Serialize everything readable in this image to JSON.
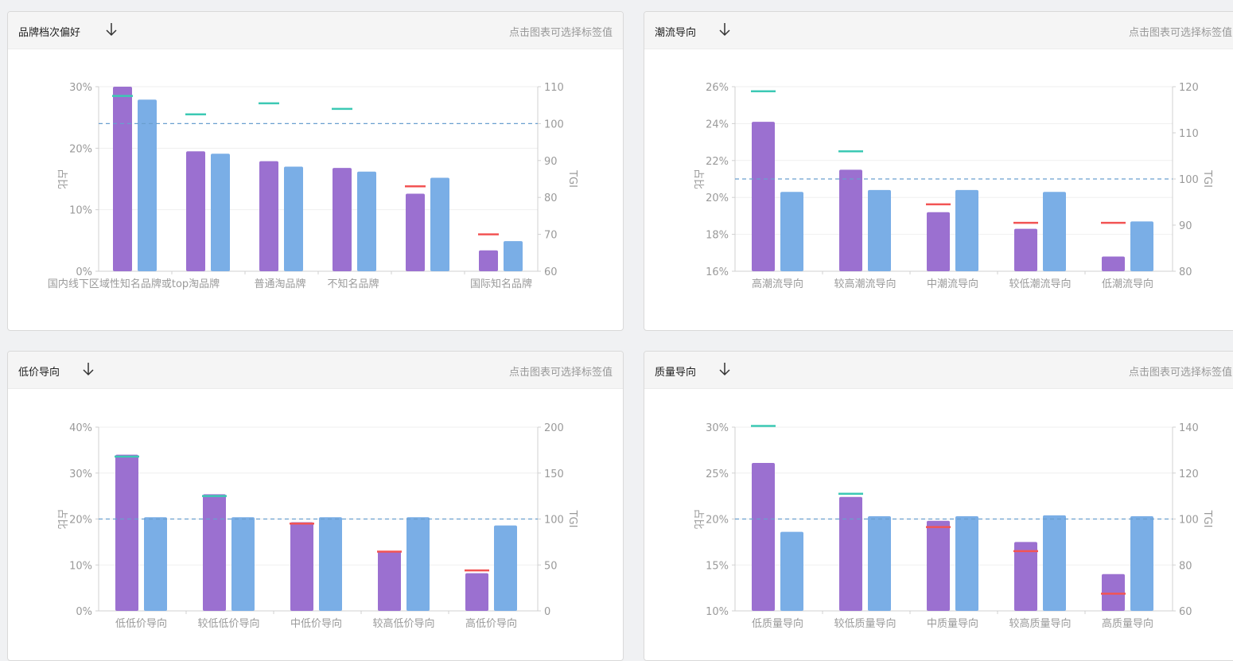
{
  "colors": {
    "bar_primary": "#9b70d0",
    "bar_secondary": "#7aaee6",
    "tgi_high": "#3cc9b4",
    "tgi_low": "#f25454",
    "baseline": "#6a9fcf",
    "axis": "#d0d0d0",
    "grid": "#efefef",
    "label": "#9a9a9a"
  },
  "panels": [
    {
      "title": "品牌档次偏好",
      "hint": "点击图表可选择标签值",
      "chart_data": {
        "type": "bar",
        "categories": [
          "国内线下区域性知名品牌或top淘品牌",
          "普通淘品牌",
          "不知名品牌",
          "",
          "",
          "国际知名品牌"
        ],
        "category_tick_labels": [
          "国内线下区域性知名品牌或top淘品牌",
          "普通淘品牌",
          "不知名品牌",
          "国际知名品牌"
        ],
        "series": [
          {
            "role": "primary",
            "values": [
              30,
              19.5,
              17.9,
              16.8,
              12.6,
              3.4
            ]
          },
          {
            "role": "secondary",
            "values": [
              27.9,
              19.1,
              17,
              16.2,
              15.2,
              4.9
            ]
          }
        ],
        "tgi": [
          107.5,
          102.5,
          105.5,
          104,
          83,
          70
        ],
        "left_axis": {
          "label": "占比",
          "min": 0,
          "max": 30,
          "ticks": [
            0,
            10,
            20,
            30
          ],
          "tick_labels": [
            "0%",
            "10%",
            "20%",
            "30%"
          ]
        },
        "right_axis": {
          "label": "TGI",
          "min": 60,
          "max": 110,
          "ticks": [
            60,
            70,
            80,
            90,
            100,
            110
          ],
          "tick_labels": [
            "60",
            "70",
            "80",
            "90",
            "100",
            "110"
          ]
        },
        "baseline_tgi": 100
      }
    },
    {
      "title": "潮流导向",
      "hint": "点击图表可选择标签值",
      "chart_data": {
        "type": "bar",
        "categories": [
          "高潮流导向",
          "较高潮流导向",
          "中潮流导向",
          "较低潮流导向",
          "低潮流导向"
        ],
        "category_tick_labels": [
          "高潮流导向",
          "较高潮流导向",
          "中潮流导向",
          "较低潮流导向",
          "低潮流导向"
        ],
        "series": [
          {
            "role": "primary",
            "values": [
              24.1,
              21.5,
              19.2,
              18.3,
              16.8
            ]
          },
          {
            "role": "secondary",
            "values": [
              20.3,
              20.4,
              20.4,
              20.3,
              18.7
            ]
          }
        ],
        "tgi": [
          119,
          106,
          94.5,
          90.5,
          90.5
        ],
        "left_axis": {
          "label": "占比",
          "min": 16,
          "max": 26,
          "ticks": [
            16,
            18,
            20,
            22,
            24,
            26
          ],
          "tick_labels": [
            "16%",
            "18%",
            "20%",
            "22%",
            "24%",
            "26%"
          ]
        },
        "right_axis": {
          "label": "TGI",
          "min": 80,
          "max": 120,
          "ticks": [
            80,
            90,
            100,
            110,
            120
          ],
          "tick_labels": [
            "80",
            "90",
            "100",
            "110",
            "120"
          ]
        },
        "baseline_tgi": 100
      }
    },
    {
      "title": "低价导向",
      "hint": "点击图表可选择标签值",
      "chart_data": {
        "type": "bar",
        "categories": [
          "低低价导向",
          "较低低价导向",
          "中低价导向",
          "较高低价导向",
          "高低价导向"
        ],
        "category_tick_labels": [
          "低低价导向",
          "较低低价导向",
          "中低价导向",
          "较高低价导向",
          "高低价导向"
        ],
        "series": [
          {
            "role": "primary",
            "values": [
              34,
              25.4,
              19.3,
              13,
              8.2
            ]
          },
          {
            "role": "secondary",
            "values": [
              20.4,
              20.4,
              20.4,
              20.4,
              18.6
            ]
          }
        ],
        "tgi": [
          168,
          125,
          95,
          64.5,
          44
        ],
        "left_axis": {
          "label": "占比",
          "min": 0,
          "max": 40,
          "ticks": [
            0,
            10,
            20,
            30,
            40
          ],
          "tick_labels": [
            "0%",
            "10%",
            "20%",
            "30%",
            "40%"
          ]
        },
        "right_axis": {
          "label": "TGI",
          "min": 0,
          "max": 200,
          "ticks": [
            0,
            50,
            100,
            150,
            200
          ],
          "tick_labels": [
            "0",
            "50",
            "100",
            "150",
            "200"
          ]
        },
        "baseline_tgi": 100
      }
    },
    {
      "title": "质量导向",
      "hint": "点击图表可选择标签值",
      "chart_data": {
        "type": "bar",
        "categories": [
          "低质量导向",
          "较低质量导向",
          "中质量导向",
          "较高质量导向",
          "高质量导向"
        ],
        "category_tick_labels": [
          "低质量导向",
          "较低质量导向",
          "中质量导向",
          "较高质量导向",
          "高质量导向"
        ],
        "series": [
          {
            "role": "primary",
            "values": [
              26.1,
              22.4,
              19.8,
              17.5,
              14
            ]
          },
          {
            "role": "secondary",
            "values": [
              18.6,
              20.3,
              20.3,
              20.4,
              20.3
            ]
          }
        ],
        "tgi": [
          140.5,
          111,
          96.5,
          86,
          67.5
        ],
        "left_axis": {
          "label": "占比",
          "min": 10,
          "max": 30,
          "ticks": [
            10,
            15,
            20,
            25,
            30
          ],
          "tick_labels": [
            "10%",
            "15%",
            "20%",
            "25%",
            "30%"
          ]
        },
        "right_axis": {
          "label": "TGI",
          "min": 60,
          "max": 140,
          "ticks": [
            60,
            80,
            100,
            120,
            140
          ],
          "tick_labels": [
            "60",
            "80",
            "100",
            "120",
            "140"
          ]
        },
        "baseline_tgi": 100
      }
    }
  ]
}
